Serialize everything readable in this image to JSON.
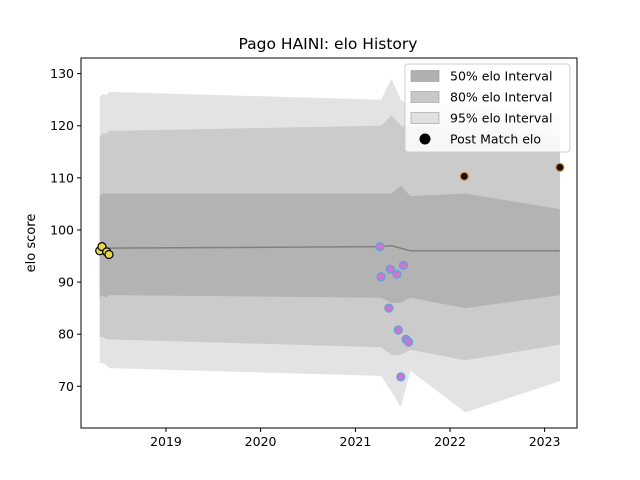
{
  "chart_data": {
    "type": "line",
    "title": "Pago HAINI: elo History",
    "xlabel": "",
    "ylabel": "elo score",
    "xlim": [
      "2018-02-07",
      "2023-05-06"
    ],
    "ylim": [
      62,
      133
    ],
    "x_ticks": [
      "2019",
      "2020",
      "2021",
      "2022",
      "2023"
    ],
    "y_ticks": [
      70,
      80,
      90,
      100,
      110,
      120,
      130
    ],
    "grid": false,
    "legend_position": "top-right",
    "legend": [
      {
        "label": "50% elo Interval",
        "color": "#b0b0b0",
        "kind": "patch"
      },
      {
        "label": "80% elo Interval",
        "color": "#c8c8c8",
        "kind": "patch"
      },
      {
        "label": "95% elo Interval",
        "color": "#e0e0e0",
        "kind": "patch"
      },
      {
        "label": "Post Match elo",
        "color": "#000000",
        "kind": "marker"
      }
    ],
    "mean_line": {
      "color": "#808080",
      "x": [
        "2018-04-20",
        "2021-04-10",
        "2021-05-20",
        "2021-06-25",
        "2021-08-01",
        "2022-03-01",
        "2023-03-01"
      ],
      "y": [
        96.5,
        96.8,
        97.0,
        96.5,
        96.0,
        96.0,
        96.0
      ]
    },
    "intervals": [
      {
        "name": "95% elo Interval",
        "color": "#e0e0e0",
        "x": [
          "2018-04-20",
          "2018-04-29",
          "2018-05-17",
          "2018-05-26",
          "2021-04-10",
          "2021-05-20",
          "2021-06-25",
          "2021-08-01",
          "2022-03-01",
          "2023-03-01"
        ],
        "upper": [
          125.5,
          126,
          126,
          126.5,
          125,
          129,
          125,
          124,
          124,
          122
        ],
        "lower": [
          74.5,
          74.5,
          74,
          73.5,
          72,
          69,
          66,
          73,
          65,
          71
        ]
      },
      {
        "name": "80% elo Interval",
        "color": "#c8c8c8",
        "x": [
          "2018-04-20",
          "2018-04-29",
          "2018-05-17",
          "2018-05-26",
          "2021-04-10",
          "2021-05-20",
          "2021-06-25",
          "2021-08-01",
          "2022-03-01",
          "2023-03-01"
        ],
        "upper": [
          118,
          118.5,
          118.5,
          119,
          120,
          122,
          120,
          120,
          119.5,
          118
        ],
        "lower": [
          79.5,
          79.5,
          79,
          79,
          77.5,
          76,
          76,
          77,
          75,
          78
        ]
      },
      {
        "name": "50% elo Interval",
        "color": "#b0b0b0",
        "x": [
          "2018-04-20",
          "2018-04-29",
          "2018-05-17",
          "2018-05-26",
          "2021-04-10",
          "2021-05-20",
          "2021-06-25",
          "2021-08-01",
          "2022-03-01",
          "2023-03-01"
        ],
        "upper": [
          106.5,
          107,
          107,
          107,
          107,
          107,
          108.5,
          106.5,
          107,
          104
        ],
        "lower": [
          87,
          87.5,
          87,
          87.5,
          87,
          86,
          86,
          87,
          85,
          87.5
        ]
      }
    ],
    "series": [
      {
        "name": "Post Match elo",
        "fill": "#e8d44d",
        "edge": "#000000",
        "x": [
          "2018-04-20",
          "2018-04-29",
          "2018-05-17",
          "2018-05-26"
        ],
        "y": [
          96.0,
          96.8,
          95.8,
          95.3
        ]
      },
      {
        "name": "Post Match elo",
        "fill": "#cc77cc",
        "edge": "#5ba3dc",
        "x": [
          "2021-04-05",
          "2021-04-10",
          "2021-05-10",
          "2021-05-15",
          "2021-06-10",
          "2021-06-15",
          "2021-06-25",
          "2021-07-05",
          "2021-07-15",
          "2021-07-25"
        ],
        "y": [
          96.8,
          91.0,
          85.0,
          92.5,
          91.5,
          80.8,
          71.8,
          93.2,
          79.0,
          78.5
        ]
      },
      {
        "name": "Post Match elo",
        "fill": "#111111",
        "edge": "#e08a3c",
        "x": [
          "2022-02-25",
          "2023-03-01"
        ],
        "y": [
          110.3,
          112.0
        ]
      }
    ]
  }
}
